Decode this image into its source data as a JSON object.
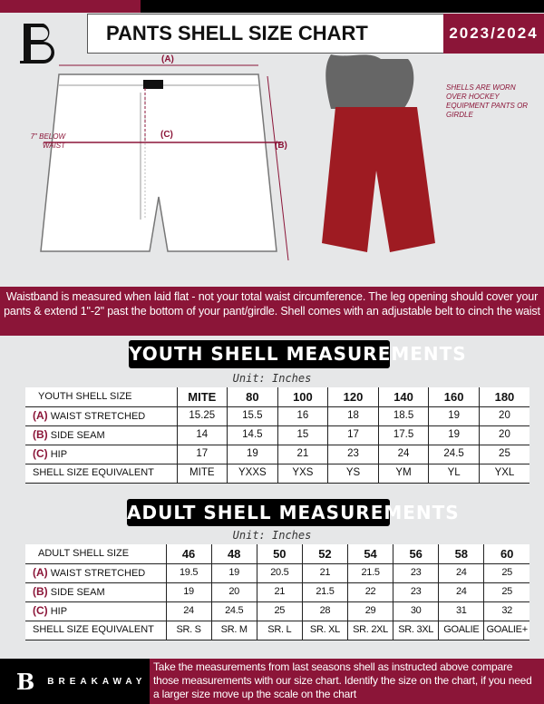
{
  "header": {
    "title": "PANTS SHELL SIZE CHART",
    "season": "2023/2024"
  },
  "diagram": {
    "label_a": "(A)",
    "label_b": "(B)",
    "label_c": "(C)",
    "below_waist": "7\" BELOW WAIST",
    "note": "SHELLS ARE WORN OVER HOCKEY EQUIPMENT PANTS OR GIRDLE"
  },
  "banner": "Waistband is measured when laid flat - not your total waist circumference. The leg opening should cover your pants & extend 1\"-2\" past the bottom of your pant/girdle. Shell comes with an adjustable belt to cinch the waist",
  "youth": {
    "title": "YOUTH SHELL MEASUREMENTS",
    "unit": "Unit: Inches",
    "header": [
      "YOUTH SHELL SIZE",
      "MITE",
      "80",
      "100",
      "120",
      "140",
      "160",
      "180"
    ],
    "rows": [
      {
        "code": "(A)",
        "label": "WAIST STRETCHED",
        "values": [
          "15.25",
          "15.5",
          "16",
          "18",
          "18.5",
          "19",
          "20"
        ]
      },
      {
        "code": "(B)",
        "label": "SIDE SEAM",
        "values": [
          "14",
          "14.5",
          "15",
          "17",
          "17.5",
          "19",
          "20"
        ]
      },
      {
        "code": "(C)",
        "label": "HIP",
        "values": [
          "17",
          "19",
          "21",
          "23",
          "24",
          "24.5",
          "25"
        ]
      },
      {
        "code": "",
        "label": "SHELL SIZE EQUIVALENT",
        "values": [
          "MITE",
          "YXXS",
          "YXS",
          "YS",
          "YM",
          "YL",
          "YXL"
        ]
      }
    ]
  },
  "adult": {
    "title": "ADULT SHELL MEASUREMENTS",
    "unit": "Unit: Inches",
    "header": [
      "ADULT SHELL SIZE",
      "46",
      "48",
      "50",
      "52",
      "54",
      "56",
      "58",
      "60"
    ],
    "rows": [
      {
        "code": "(A)",
        "label": "WAIST STRETCHED",
        "values": [
          "19.5",
          "19",
          "20.5",
          "21",
          "21.5",
          "23",
          "24",
          "25"
        ]
      },
      {
        "code": "(B)",
        "label": "SIDE SEAM",
        "values": [
          "19",
          "20",
          "21",
          "21.5",
          "22",
          "23",
          "24",
          "25"
        ]
      },
      {
        "code": "(C)",
        "label": "HIP",
        "values": [
          "24",
          "24.5",
          "25",
          "28",
          "29",
          "30",
          "31",
          "32"
        ]
      },
      {
        "code": "",
        "label": "SHELL SIZE EQUIVALENT",
        "values": [
          "SR. S",
          "SR. M",
          "SR. L",
          "SR. XL",
          "SR. 2XL",
          "SR. 3XL",
          "GOALIE",
          "GOALIE+"
        ]
      }
    ]
  },
  "footer": {
    "brand": "BREAKAWAY",
    "text": "Take the measurements from last seasons shell as instructed above compare those measurements  with our size chart. Identify the size on the chart, if you need a larger size move up the scale on the chart"
  },
  "colors": {
    "brand": "#8b1538",
    "shell": "#9e1b22"
  }
}
